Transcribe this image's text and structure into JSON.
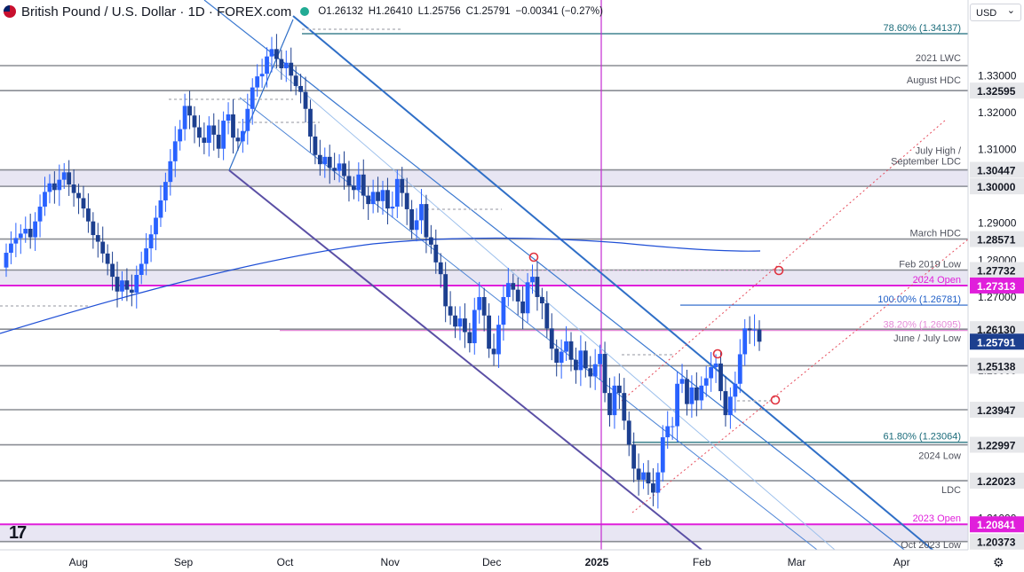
{
  "header": {
    "title": "British Pound / U.S. Dollar · 1D · FOREX.com",
    "open": "O1.26132",
    "high": "H1.26410",
    "low": "L1.25756",
    "close": "C1.25791",
    "change": "−0.00341 (−0.27%)",
    "currency": "USD"
  },
  "colors": {
    "bull": "#2962ff",
    "bear": "#1c3f8f",
    "magenta": "#e01fdb",
    "channel": "#2f6fc7",
    "channel_dark": "#5a4fa5",
    "ma": "#1f4fd6",
    "fib": "#e64a5a",
    "zone": "#e6e3f2"
  },
  "chart_data": {
    "type": "candlestick",
    "title": "British Pound / U.S. Dollar · 1D · FOREX.com",
    "ylim": [
      1.2015,
      1.3505
    ],
    "x_ticks": [
      {
        "label": "Aug",
        "date": "2024-08-01"
      },
      {
        "label": "Sep",
        "date": "2024-09-01"
      },
      {
        "label": "Oct",
        "date": "2024-10-01"
      },
      {
        "label": "Nov",
        "date": "2024-11-01"
      },
      {
        "label": "Dec",
        "date": "2024-12-01"
      },
      {
        "label": "2025",
        "date": "2025-01-01"
      },
      {
        "label": "Feb",
        "date": "2025-02-01"
      },
      {
        "label": "Mar",
        "date": "2025-03-01"
      },
      {
        "label": "Apr",
        "date": "2025-04-01"
      }
    ],
    "y_ticks": [
      "1.33000",
      "1.32000",
      "1.31000",
      "1.30000",
      "1.29000",
      "1.28000",
      "1.27000",
      "1.26000",
      "1.25000",
      "1.24000",
      "1.23000",
      "1.22000",
      "1.21000"
    ],
    "levels": [
      {
        "value": 1.34137,
        "label": "78.60% (1.34137)",
        "axis": "",
        "style": "teal"
      },
      {
        "value": 1.32595,
        "label": "August HDC",
        "axis": "1.32595",
        "style": "gray"
      },
      {
        "value": 1.3265,
        "label": "2021 LWC",
        "axis": "",
        "style": "gray"
      },
      {
        "value": 1.30447,
        "label": "July High / September LDC",
        "axis": "1.30447",
        "style": "gray"
      },
      {
        "value": 1.3,
        "label": "",
        "axis": "1.30000",
        "style": "gray"
      },
      {
        "value": 1.28571,
        "label": "March HDC",
        "axis": "1.28571",
        "style": "gray"
      },
      {
        "value": 1.27732,
        "label": "Feb 2019 Low",
        "axis": "1.27732",
        "style": "gray"
      },
      {
        "value": 1.27313,
        "label": "2024 Open",
        "axis": "1.27313",
        "style": "magenta"
      },
      {
        "value": 1.26781,
        "label": "100.00% (1.26781)",
        "axis": "",
        "style": "blue"
      },
      {
        "value": 1.26095,
        "label": "38.20% (1.26095)",
        "axis": "",
        "style": "pink"
      },
      {
        "value": 1.2613,
        "label": "June / July Low",
        "axis": "1.26130",
        "style": "gray"
      },
      {
        "value": 1.25791,
        "label": "",
        "axis": "1.25791",
        "style": "price"
      },
      {
        "value": 1.25138,
        "label": "",
        "axis": "1.25138",
        "style": "gray"
      },
      {
        "value": 1.23947,
        "label": "",
        "axis": "1.23947",
        "style": "gray"
      },
      {
        "value": 1.23064,
        "label": "61.80% (1.23064)",
        "axis": "",
        "style": "teal"
      },
      {
        "value": 1.22997,
        "label": "2024 Low",
        "axis": "1.22997",
        "style": "gray"
      },
      {
        "value": 1.22023,
        "label": "LDC",
        "axis": "1.22023",
        "style": "gray"
      },
      {
        "value": 1.20841,
        "label": "2023 Open",
        "axis": "1.20841",
        "style": "magenta"
      },
      {
        "value": 1.20373,
        "label": "Oct 2023 Low",
        "axis": "1.20373",
        "style": "gray"
      }
    ],
    "zones": [
      {
        "from": 1.3,
        "to": 1.30447
      },
      {
        "from": 1.27313,
        "to": 1.27732
      },
      {
        "from": 1.20373,
        "to": 1.20841
      }
    ],
    "closes": [
      1.282,
      1.2845,
      1.286,
      1.2872,
      1.2885,
      1.2862,
      1.2905,
      1.2945,
      1.2985,
      1.3008,
      1.299,
      1.3018,
      1.3038,
      1.3005,
      1.2982,
      1.2968,
      1.294,
      1.2905,
      1.2868,
      1.285,
      1.2818,
      1.279,
      1.2755,
      1.2715,
      1.2745,
      1.272,
      1.2712,
      1.276,
      1.279,
      1.2832,
      1.287,
      1.2915,
      1.2962,
      1.3012,
      1.3068,
      1.3122,
      1.3155,
      1.3218,
      1.3192,
      1.316,
      1.3132,
      1.3118,
      1.3165,
      1.314,
      1.3102,
      1.3178,
      1.3195,
      1.3132,
      1.3122,
      1.315,
      1.321,
      1.3268,
      1.3298,
      1.3305,
      1.3352,
      1.3372,
      1.3345,
      1.332,
      1.3335,
      1.33,
      1.3272,
      1.3256,
      1.321,
      1.3135,
      1.3085,
      1.306,
      1.308,
      1.305,
      1.3042,
      1.3062,
      1.3028,
      1.3002,
      1.299,
      1.3032,
      1.2975,
      1.2952,
      1.2985,
      1.296,
      1.299,
      1.294,
      1.2945,
      1.302,
      1.2982,
      1.2938,
      1.2882,
      1.2908,
      1.2952,
      1.2862,
      1.2842,
      1.2794,
      1.2762,
      1.2675,
      1.265,
      1.262,
      1.2642,
      1.2605,
      1.2575,
      1.2665,
      1.27,
      1.265,
      1.256,
      1.2545,
      1.2625,
      1.27,
      1.2738,
      1.272,
      1.2688,
      1.2656,
      1.274,
      1.2755,
      1.27,
      1.2683,
      1.2615,
      1.256,
      1.2522,
      1.2552,
      1.258,
      1.253,
      1.2502,
      1.2555,
      1.2507,
      1.2485,
      1.2518,
      1.2546,
      1.244,
      1.238,
      1.246,
      1.244,
      1.2365,
      1.23,
      1.2235,
      1.2205,
      1.2225,
      1.2195,
      1.217,
      1.2225,
      1.232,
      1.235,
      1.235,
      1.2465,
      1.2478,
      1.241,
      1.2455,
      1.242,
      1.246,
      1.248,
      1.251,
      1.252,
      1.2445,
      1.238,
      1.243,
      1.2465,
      1.2545,
      1.2615,
      1.261,
      1.2612,
      1.2579
    ]
  }
}
